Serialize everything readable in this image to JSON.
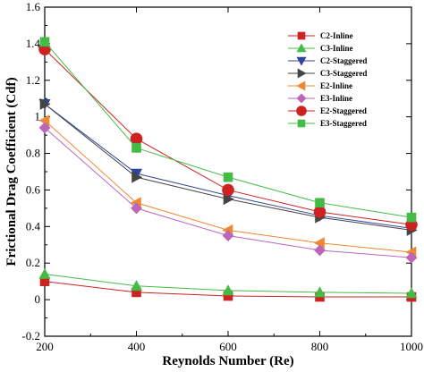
{
  "chart_data": {
    "type": "line",
    "title": "",
    "xlabel": "Reynolds Number (Re)",
    "ylabel": "Frictional Drag Coefficient (Cdf)",
    "xlim": [
      200,
      1000
    ],
    "ylim": [
      -0.2,
      1.6
    ],
    "xticks": [
      "200",
      "400",
      "600",
      "800",
      "1000"
    ],
    "yticks": [
      "-0.2",
      "0",
      "0.2",
      "0.4",
      "0.6",
      "0.8",
      "1",
      "1.2",
      "1.4",
      "1.6"
    ],
    "grid": false,
    "legend_position": "top-right",
    "x": [
      200,
      400,
      600,
      800,
      1000
    ],
    "series": [
      {
        "name": "C2-Inline",
        "color": "#cc2222",
        "marker": "square",
        "values": [
          0.1,
          0.04,
          0.02,
          0.015,
          0.015
        ]
      },
      {
        "name": "C3-Inline",
        "color": "#44bb44",
        "marker": "triangle-up",
        "values": [
          0.14,
          0.075,
          0.05,
          0.04,
          0.035
        ]
      },
      {
        "name": "C2-Staggered",
        "color": "#334499",
        "marker": "triangle-down",
        "values": [
          1.07,
          0.69,
          0.57,
          0.46,
          0.39
        ]
      },
      {
        "name": "C3-Staggered",
        "color": "#444444",
        "marker": "triangle-right",
        "values": [
          1.07,
          0.67,
          0.55,
          0.45,
          0.38
        ]
      },
      {
        "name": "E2-Inline",
        "color": "#ee8833",
        "marker": "triangle-left",
        "values": [
          0.98,
          0.53,
          0.38,
          0.31,
          0.26
        ]
      },
      {
        "name": "E3-Inline",
        "color": "#bb66bb",
        "marker": "diamond",
        "values": [
          0.94,
          0.5,
          0.35,
          0.27,
          0.23
        ]
      },
      {
        "name": "E2-Staggered",
        "color": "#cc2222",
        "marker": "circle",
        "values": [
          1.37,
          0.88,
          0.6,
          0.48,
          0.41
        ]
      },
      {
        "name": "E3-Staggered",
        "color": "#44bb44",
        "marker": "square",
        "values": [
          1.41,
          0.83,
          0.67,
          0.53,
          0.45
        ]
      }
    ]
  }
}
